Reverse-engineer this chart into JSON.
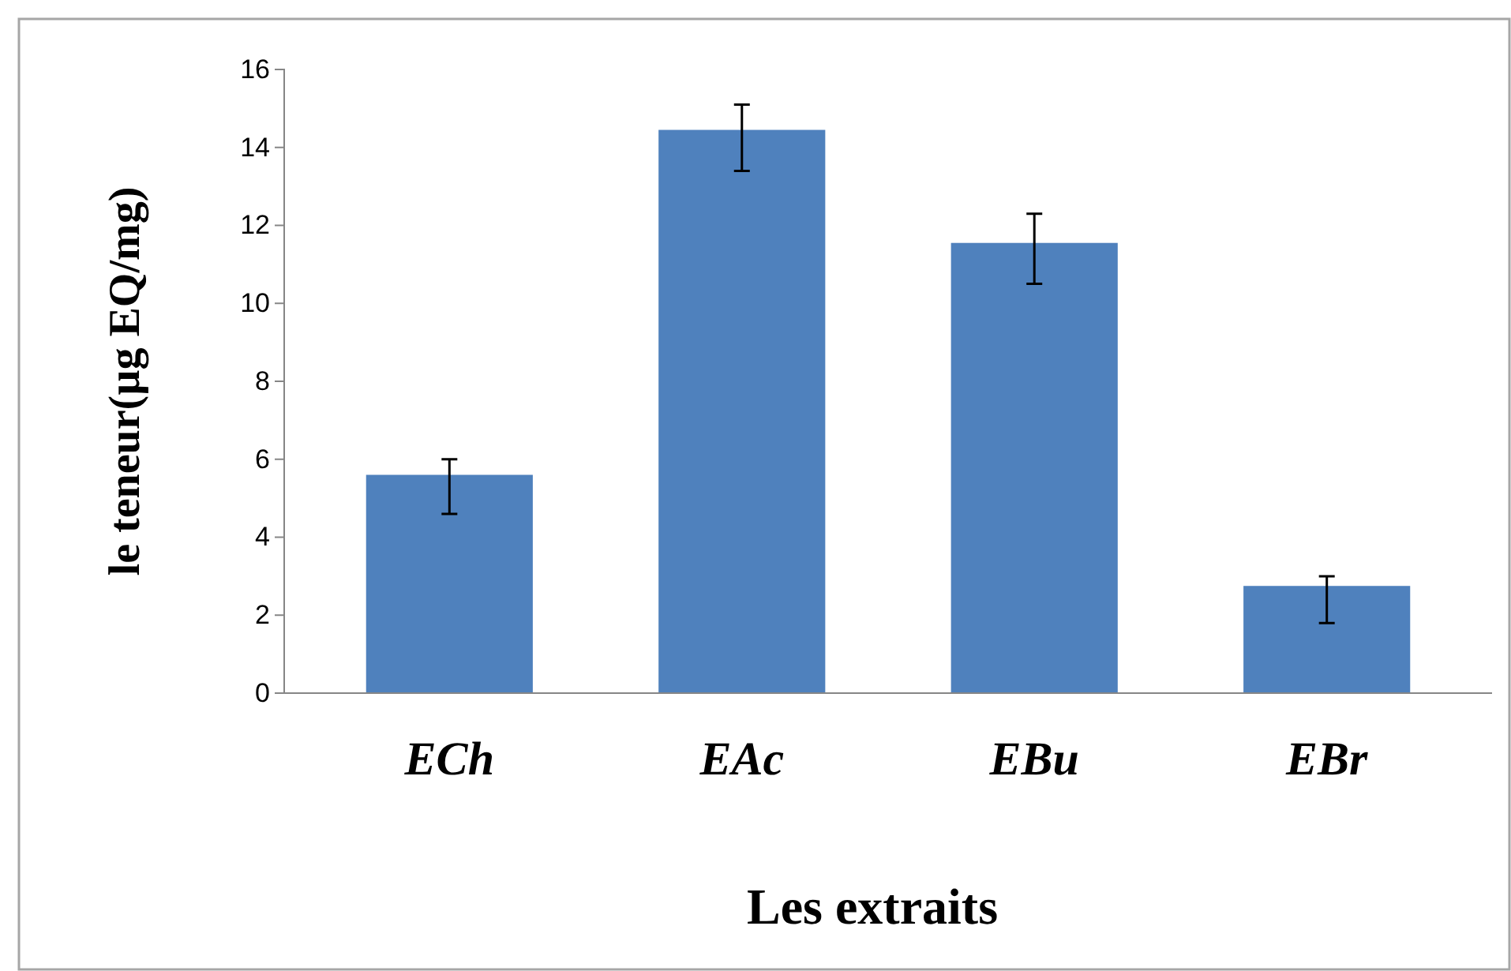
{
  "chart_data": {
    "type": "bar",
    "xlabel": "Les extraits",
    "ylabel": "le teneur(µg EQ/mg)",
    "categories": [
      "ECh",
      "EAc",
      "EBu",
      "EBr"
    ],
    "values": [
      5.6,
      14.45,
      11.55,
      2.75
    ],
    "errors": [
      [
        4.6,
        6.0
      ],
      [
        13.4,
        15.1
      ],
      [
        10.5,
        12.3
      ],
      [
        1.8,
        3.0
      ]
    ],
    "color": "#4f81bd",
    "ylim": [
      0,
      16
    ],
    "yticks": [
      0,
      2,
      4,
      6,
      8,
      10,
      12,
      14,
      16
    ],
    "grid": false
  }
}
